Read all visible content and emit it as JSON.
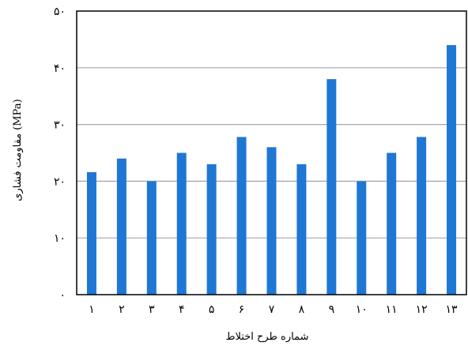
{
  "chart_data": {
    "type": "bar",
    "title": "",
    "xlabel": "شماره طرح اختلاط",
    "ylabel": "مقاومت فشاری (MPa)",
    "categories": [
      "۱",
      "۲",
      "۳",
      "۴",
      "۵",
      "۶",
      "۷",
      "۸",
      "۹",
      "۱۰",
      "۱۱",
      "۱۲",
      "۱۳"
    ],
    "values": [
      21.6,
      24,
      20,
      25,
      23,
      27.8,
      26,
      23,
      38,
      20,
      25,
      27.8,
      44
    ],
    "ylim": [
      0,
      50
    ],
    "yticks": [
      0,
      10,
      20,
      30,
      40,
      50
    ],
    "ytick_labels": [
      "۰",
      "۱۰",
      "۲۰",
      "۳۰",
      "۴۰",
      "۵۰"
    ],
    "grid": true,
    "legend": "none",
    "colors": {
      "bar": "#1f77d4",
      "grid": "#a6a6a6",
      "axis": "#000000"
    }
  }
}
